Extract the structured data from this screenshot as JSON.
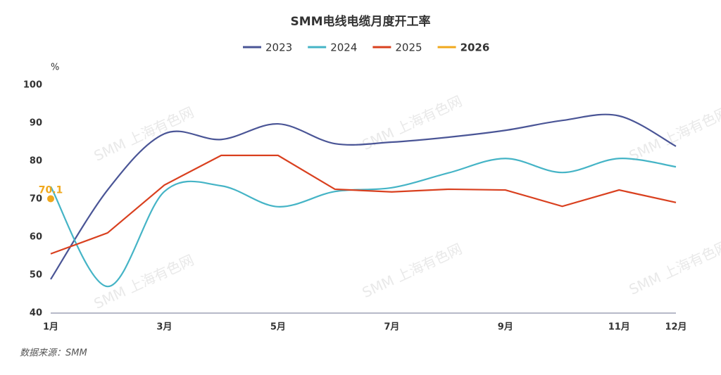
{
  "chart_data": {
    "type": "line",
    "title": "SMM电线电缆月度开工率",
    "y_unit": "%",
    "source": "数据来源：SMM",
    "watermark": "SMM 上海有色网",
    "categories": [
      "1月",
      null,
      "3月",
      null,
      "5月",
      null,
      "7月",
      null,
      "9月",
      null,
      "11月",
      "12月"
    ],
    "series": [
      {
        "name": "2023",
        "color": "#4a5596",
        "smooth": true,
        "values": [
          48.9,
          72.4,
          87.2,
          85.7,
          89.8,
          84.6,
          85.0,
          86.3,
          88.1,
          90.7,
          91.9,
          83.9
        ]
      },
      {
        "name": "2024",
        "color": "#45b4c6",
        "smooth": true,
        "values": [
          73.3,
          47.0,
          72.0,
          73.5,
          68.0,
          72.0,
          73.0,
          76.9,
          80.7,
          77.0,
          80.7,
          78.5
        ]
      },
      {
        "name": "2025",
        "color": "#d9401f",
        "smooth": false,
        "values": [
          55.6,
          61.1,
          73.7,
          81.5,
          81.5,
          72.6,
          71.9,
          72.6,
          72.4,
          68.1,
          72.4,
          69.1
        ]
      },
      {
        "name": "2026",
        "color": "#f0a81c",
        "smooth": false,
        "show_labels": true,
        "values": [
          70.1,
          null,
          null,
          null,
          null,
          null,
          null,
          null,
          null,
          null,
          null,
          null
        ]
      }
    ],
    "ylim": [
      40,
      100
    ],
    "yticks": [
      40,
      50,
      60,
      70,
      80,
      90,
      100
    ],
    "grid": false
  }
}
